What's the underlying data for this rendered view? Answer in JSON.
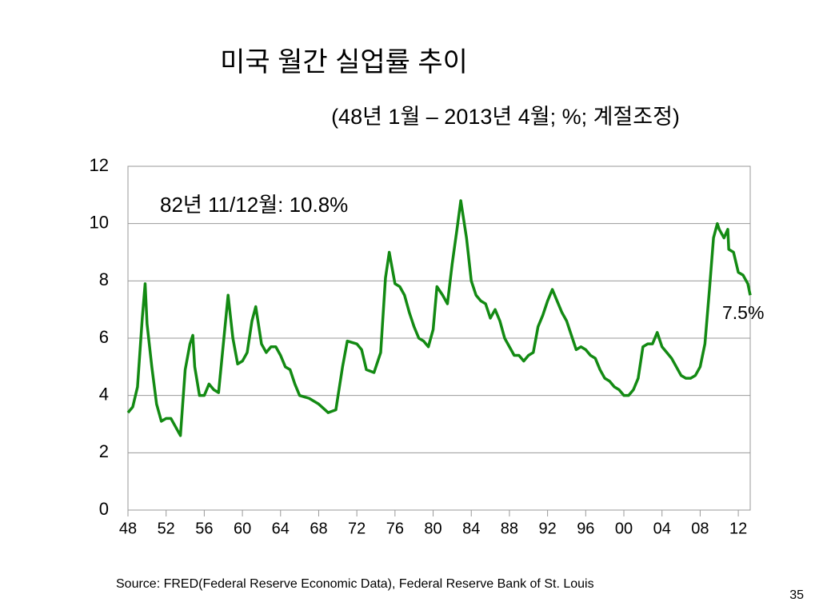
{
  "chart_data": {
    "type": "line",
    "title": "미국 월간 실업률 추이",
    "subtitle": "(48년 1월 – 2013년 4월; %; 계절조정)",
    "annotations": [
      "82년 11/12월: 10.8%",
      "7.5%"
    ],
    "source": "Source:  FRED(Federal Reserve Economic Data), Federal Reserve Bank of St. Louis",
    "page_number": "35",
    "xlim": [
      1948,
      2013.25
    ],
    "xticks": [
      {
        "value": 1948,
        "label": "48"
      },
      {
        "value": 1952,
        "label": "52"
      },
      {
        "value": 1956,
        "label": "56"
      },
      {
        "value": 1960,
        "label": "60"
      },
      {
        "value": 1964,
        "label": "64"
      },
      {
        "value": 1968,
        "label": "68"
      },
      {
        "value": 1972,
        "label": "72"
      },
      {
        "value": 1976,
        "label": "76"
      },
      {
        "value": 1980,
        "label": "80"
      },
      {
        "value": 1984,
        "label": "84"
      },
      {
        "value": 1988,
        "label": "88"
      },
      {
        "value": 1992,
        "label": "92"
      },
      {
        "value": 1996,
        "label": "96"
      },
      {
        "value": 2000,
        "label": "00"
      },
      {
        "value": 2004,
        "label": "04"
      },
      {
        "value": 2008,
        "label": "08"
      },
      {
        "value": 2012,
        "label": "12"
      }
    ],
    "ylim": [
      0,
      12
    ],
    "yticks": [
      0,
      2,
      4,
      6,
      8,
      10,
      12
    ],
    "grid": true,
    "x": [
      1948.0,
      1948.5,
      1949.0,
      1949.5,
      1949.8,
      1950.0,
      1950.5,
      1951.0,
      1951.5,
      1952.0,
      1952.5,
      1953.0,
      1953.5,
      1954.0,
      1954.5,
      1954.8,
      1955.0,
      1955.5,
      1956.0,
      1956.5,
      1957.0,
      1957.5,
      1958.0,
      1958.5,
      1959.0,
      1959.5,
      1960.0,
      1960.5,
      1961.0,
      1961.4,
      1962.0,
      1962.5,
      1963.0,
      1963.5,
      1964.0,
      1964.5,
      1965.0,
      1965.5,
      1966.0,
      1967.0,
      1968.0,
      1969.0,
      1969.8,
      1970.5,
      1971.0,
      1972.0,
      1972.5,
      1973.0,
      1973.8,
      1974.5,
      1975.0,
      1975.4,
      1976.0,
      1976.5,
      1977.0,
      1977.5,
      1978.0,
      1978.5,
      1979.0,
      1979.5,
      1980.0,
      1980.4,
      1981.0,
      1981.5,
      1982.0,
      1982.5,
      1982.9,
      1983.5,
      1984.0,
      1984.5,
      1985.0,
      1985.5,
      1986.0,
      1986.5,
      1987.0,
      1987.5,
      1988.0,
      1988.5,
      1989.0,
      1989.5,
      1990.0,
      1990.5,
      1991.0,
      1991.5,
      1992.0,
      1992.5,
      1993.0,
      1993.5,
      1994.0,
      1994.5,
      1995.0,
      1995.5,
      1996.0,
      1996.5,
      1997.0,
      1997.5,
      1998.0,
      1998.5,
      1999.0,
      1999.5,
      2000.0,
      2000.5,
      2001.0,
      2001.5,
      2002.0,
      2002.5,
      2003.0,
      2003.5,
      2004.0,
      2004.5,
      2005.0,
      2005.5,
      2006.0,
      2006.5,
      2007.0,
      2007.5,
      2008.0,
      2008.5,
      2009.0,
      2009.4,
      2009.8,
      2010.0,
      2010.5,
      2010.9,
      2011.0,
      2011.5,
      2012.0,
      2012.5,
      2013.0,
      2013.25
    ],
    "series": [
      {
        "name": "실업률",
        "color": "#138a13",
        "values": [
          3.4,
          3.6,
          4.3,
          6.7,
          7.9,
          6.5,
          5.0,
          3.7,
          3.1,
          3.2,
          3.2,
          2.9,
          2.6,
          4.9,
          5.8,
          6.1,
          5.0,
          4.0,
          4.0,
          4.4,
          4.2,
          4.1,
          5.8,
          7.5,
          6.0,
          5.1,
          5.2,
          5.5,
          6.6,
          7.1,
          5.8,
          5.5,
          5.7,
          5.7,
          5.4,
          5.0,
          4.9,
          4.4,
          4.0,
          3.9,
          3.7,
          3.4,
          3.5,
          5.0,
          5.9,
          5.8,
          5.6,
          4.9,
          4.8,
          5.5,
          8.1,
          9.0,
          7.9,
          7.8,
          7.5,
          6.9,
          6.4,
          6.0,
          5.9,
          5.7,
          6.3,
          7.8,
          7.5,
          7.2,
          8.6,
          9.8,
          10.8,
          9.5,
          8.0,
          7.5,
          7.3,
          7.2,
          6.7,
          7.0,
          6.6,
          6.0,
          5.7,
          5.4,
          5.4,
          5.2,
          5.4,
          5.5,
          6.4,
          6.8,
          7.3,
          7.7,
          7.3,
          6.9,
          6.6,
          6.1,
          5.6,
          5.7,
          5.6,
          5.4,
          5.3,
          4.9,
          4.6,
          4.5,
          4.3,
          4.2,
          4.0,
          4.0,
          4.2,
          4.6,
          5.7,
          5.8,
          5.8,
          6.2,
          5.7,
          5.5,
          5.3,
          5.0,
          4.7,
          4.6,
          4.6,
          4.7,
          5.0,
          5.8,
          7.8,
          9.5,
          10.0,
          9.8,
          9.5,
          9.8,
          9.1,
          9.0,
          8.3,
          8.2,
          7.9,
          7.5
        ]
      }
    ]
  }
}
